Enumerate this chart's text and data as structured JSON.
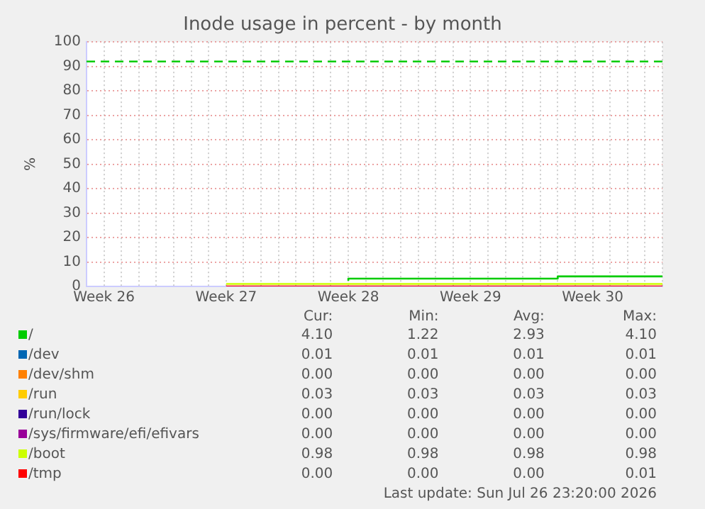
{
  "chart_data": {
    "type": "step",
    "title": "Inode usage in percent - by month",
    "ylabel": "%",
    "categories": [
      null,
      "Week 26",
      null,
      null,
      null,
      null,
      null,
      null,
      "Week 27",
      null,
      null,
      null,
      null,
      null,
      null,
      "Week 28",
      null,
      null,
      null,
      null,
      null,
      null,
      "Week 29",
      null,
      null,
      null,
      null,
      null,
      null,
      "Week 30",
      null,
      null,
      null,
      null
    ],
    "ylim": [
      0,
      100
    ],
    "yticks": [
      0,
      10,
      20,
      30,
      40,
      50,
      60,
      70,
      80,
      90,
      100
    ],
    "grid": true,
    "legend": "bottom",
    "series": [
      {
        "name": "/",
        "color": "#00cc00",
        "values": [
          null,
          null,
          null,
          null,
          null,
          null,
          null,
          null,
          null,
          null,
          null,
          null,
          null,
          null,
          null,
          2.3,
          3.2,
          3.2,
          3.2,
          3.2,
          3.2,
          3.2,
          3.2,
          3.2,
          3.2,
          3.2,
          3.2,
          3.2,
          4.1,
          4.1,
          4.1,
          4.1,
          4.1,
          4.1
        ]
      },
      {
        "name": "/dev",
        "color": "#0066b3",
        "values": [
          null,
          null,
          null,
          null,
          null,
          null,
          null,
          null,
          null,
          null,
          null,
          null,
          null,
          null,
          null,
          null,
          null,
          null,
          null,
          null,
          null,
          null,
          null,
          null,
          null,
          null,
          null,
          null,
          null,
          null,
          null,
          null,
          null,
          null
        ]
      },
      {
        "name": "/dev/shm",
        "color": "#ff8000",
        "values": [
          null,
          null,
          null,
          null,
          null,
          null,
          null,
          null,
          null,
          null,
          null,
          null,
          null,
          null,
          null,
          null,
          null,
          null,
          null,
          null,
          null,
          null,
          null,
          null,
          null,
          null,
          null,
          null,
          null,
          null,
          null,
          null,
          null,
          null
        ]
      },
      {
        "name": "/run",
        "color": "#ffcc00",
        "values": [
          null,
          null,
          null,
          null,
          null,
          null,
          null,
          null,
          null,
          null,
          null,
          null,
          null,
          null,
          null,
          null,
          null,
          null,
          null,
          null,
          null,
          null,
          null,
          null,
          null,
          null,
          null,
          null,
          null,
          null,
          null,
          null,
          null,
          null
        ]
      },
      {
        "name": "/run/lock",
        "color": "#330099",
        "values": [
          null,
          null,
          null,
          null,
          null,
          null,
          null,
          null,
          null,
          null,
          null,
          null,
          null,
          null,
          null,
          null,
          null,
          null,
          null,
          null,
          null,
          null,
          null,
          null,
          null,
          null,
          null,
          null,
          null,
          null,
          null,
          null,
          null,
          null
        ]
      },
      {
        "name": "/sys/firmware/efi/efivars",
        "color": "#990099",
        "values": [
          null,
          null,
          null,
          null,
          null,
          null,
          null,
          null,
          null,
          null,
          null,
          null,
          null,
          null,
          null,
          null,
          null,
          null,
          null,
          null,
          null,
          null,
          null,
          null,
          null,
          null,
          null,
          null,
          null,
          null,
          null,
          null,
          null,
          null
        ]
      },
      {
        "name": "/boot",
        "color": "#ccff00",
        "values": [
          null,
          null,
          null,
          null,
          null,
          null,
          null,
          null,
          1.0,
          1.0,
          1.0,
          1.0,
          1.0,
          1.0,
          1.0,
          1.0,
          1.0,
          1.0,
          1.0,
          1.0,
          1.0,
          1.0,
          1.0,
          1.0,
          1.0,
          1.0,
          1.0,
          1.0,
          1.0,
          1.0,
          1.0,
          1.0,
          1.0,
          1.0
        ]
      },
      {
        "name": "/tmp",
        "color": "#ff0000",
        "values": [
          null,
          null,
          null,
          null,
          null,
          null,
          null,
          null,
          0,
          0,
          0,
          0,
          0,
          0,
          0,
          0,
          0,
          0,
          0,
          0,
          0,
          0,
          0,
          0,
          0,
          0,
          0,
          0,
          0,
          0,
          0,
          0,
          0,
          0
        ]
      }
    ],
    "ref_lines": [
      {
        "axis": "y",
        "value": 92,
        "color": "#00cc00",
        "line_style": "dashed"
      }
    ],
    "annotations": [
      "Cur:",
      "Min:",
      "Avg:",
      "Max:",
      "4.10",
      "1.22",
      "2.93",
      "4.10",
      "0.01",
      "0.01",
      "0.01",
      "0.01",
      "0.00",
      "0.00",
      "0.00",
      "0.00",
      "0.03",
      "0.03",
      "0.03",
      "0.03",
      "0.00",
      "0.00",
      "0.00",
      "0.00",
      "0.00",
      "0.00",
      "0.00",
      "0.00",
      "0.98",
      "0.98",
      "0.98",
      "0.98",
      "0.00",
      "0.00",
      "0.00",
      "0.01",
      "Last update: Sun Jul 26 23:20:00 2026"
    ]
  }
}
